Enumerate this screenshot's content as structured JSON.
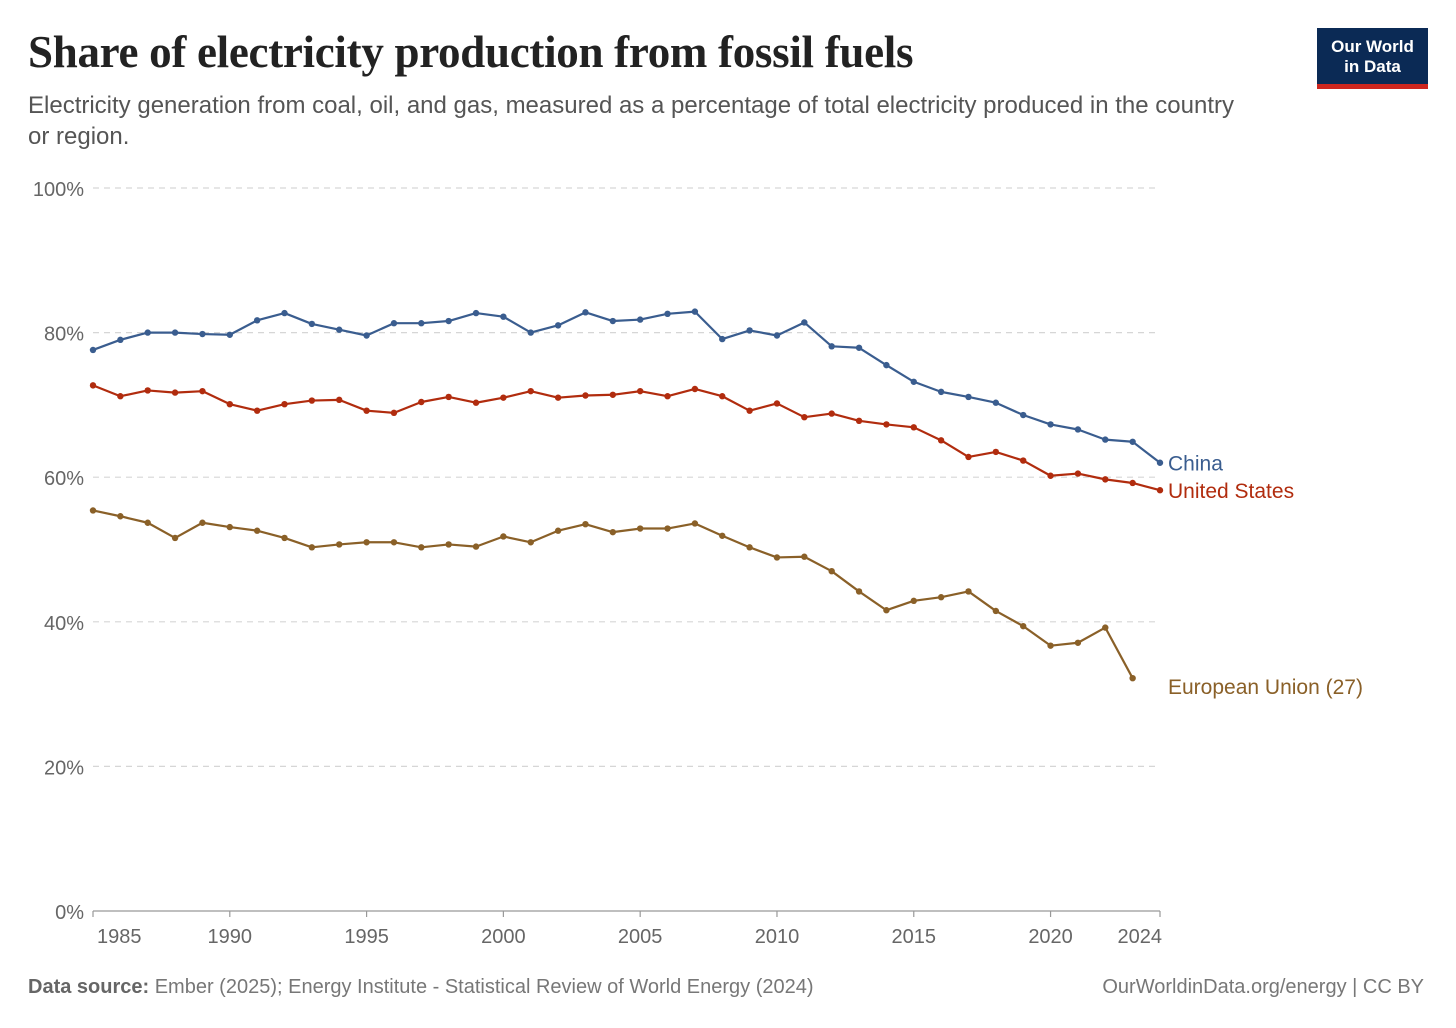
{
  "title": "Share of electricity production from fossil fuels",
  "subtitle": "Electricity generation from coal, oil, and gas, measured as a percentage of total electricity produced in the country or region.",
  "logo": {
    "line1": "Our World",
    "line2": "in Data",
    "bg": "#0b2a55",
    "accent": "#ce261e"
  },
  "footer": {
    "source_label": "Data source:",
    "source_text": "Ember (2025); Energy Institute - Statistical Review of World Energy (2024)",
    "right_text": "OurWorldinData.org/energy | CC BY"
  },
  "chart_data": {
    "type": "line",
    "ylim": [
      0,
      100
    ],
    "xlim": [
      1985,
      2024
    ],
    "grid": true,
    "y_ticks": [
      {
        "value": 0,
        "label": "0%"
      },
      {
        "value": 20,
        "label": "20%"
      },
      {
        "value": 40,
        "label": "40%"
      },
      {
        "value": 60,
        "label": "60%"
      },
      {
        "value": 80,
        "label": "80%"
      },
      {
        "value": 100,
        "label": "100%"
      }
    ],
    "x_ticks": [
      {
        "value": 1985,
        "label": "1985"
      },
      {
        "value": 1990,
        "label": "1990"
      },
      {
        "value": 1995,
        "label": "1995"
      },
      {
        "value": 2000,
        "label": "2000"
      },
      {
        "value": 2005,
        "label": "2005"
      },
      {
        "value": 2010,
        "label": "2010"
      },
      {
        "value": 2015,
        "label": "2015"
      },
      {
        "value": 2020,
        "label": "2020"
      },
      {
        "value": 2024,
        "label": "2024"
      }
    ],
    "series": [
      {
        "name": "China",
        "color": "#3a5d8f",
        "x": [
          1985,
          1986,
          1987,
          1988,
          1989,
          1990,
          1991,
          1992,
          1993,
          1994,
          1995,
          1996,
          1997,
          1998,
          1999,
          2000,
          2001,
          2002,
          2003,
          2004,
          2005,
          2006,
          2007,
          2008,
          2009,
          2010,
          2011,
          2012,
          2013,
          2014,
          2015,
          2016,
          2017,
          2018,
          2019,
          2020,
          2021,
          2022,
          2023,
          2024
        ],
        "y": [
          77.6,
          79.0,
          80.0,
          80.0,
          79.8,
          79.7,
          81.7,
          82.7,
          81.2,
          80.4,
          79.6,
          81.3,
          81.3,
          81.6,
          82.7,
          82.2,
          80.0,
          81.0,
          82.8,
          81.6,
          81.8,
          82.6,
          82.9,
          79.1,
          80.3,
          79.6,
          81.4,
          78.1,
          77.9,
          75.5,
          73.2,
          71.8,
          71.1,
          70.3,
          68.6,
          67.3,
          66.6,
          65.2,
          64.9,
          62.0
        ]
      },
      {
        "name": "United States",
        "color": "#b12c0e",
        "x": [
          1985,
          1986,
          1987,
          1988,
          1989,
          1990,
          1991,
          1992,
          1993,
          1994,
          1995,
          1996,
          1997,
          1998,
          1999,
          2000,
          2001,
          2002,
          2003,
          2004,
          2005,
          2006,
          2007,
          2008,
          2009,
          2010,
          2011,
          2012,
          2013,
          2014,
          2015,
          2016,
          2017,
          2018,
          2019,
          2020,
          2021,
          2022,
          2023,
          2024
        ],
        "y": [
          72.7,
          71.2,
          72.0,
          71.7,
          71.9,
          70.1,
          69.2,
          70.1,
          70.6,
          70.7,
          69.2,
          68.9,
          70.4,
          71.1,
          70.3,
          71.0,
          71.9,
          71.0,
          71.3,
          71.4,
          71.9,
          71.2,
          72.2,
          71.2,
          69.2,
          70.2,
          68.3,
          68.8,
          67.8,
          67.3,
          66.9,
          65.1,
          62.8,
          63.5,
          62.3,
          60.2,
          60.5,
          59.7,
          59.2,
          58.2
        ]
      },
      {
        "name": "European Union (27)",
        "color": "#8a6028",
        "x": [
          1985,
          1986,
          1987,
          1988,
          1989,
          1990,
          1991,
          1992,
          1993,
          1994,
          1995,
          1996,
          1997,
          1998,
          1999,
          2000,
          2001,
          2002,
          2003,
          2004,
          2005,
          2006,
          2007,
          2008,
          2009,
          2010,
          2011,
          2012,
          2013,
          2014,
          2015,
          2016,
          2017,
          2018,
          2019,
          2020,
          2021,
          2022,
          2023
        ],
        "y": [
          55.4,
          54.6,
          53.7,
          51.6,
          53.7,
          53.1,
          52.6,
          51.6,
          50.3,
          50.7,
          51.0,
          51.0,
          50.3,
          50.7,
          50.4,
          51.8,
          51.0,
          52.6,
          53.5,
          52.4,
          52.9,
          52.9,
          53.6,
          51.9,
          50.3,
          48.9,
          49.0,
          47.0,
          44.2,
          41.6,
          42.9,
          43.4,
          44.2,
          41.5,
          39.4,
          36.7,
          37.1,
          39.2,
          32.2
        ]
      }
    ]
  }
}
